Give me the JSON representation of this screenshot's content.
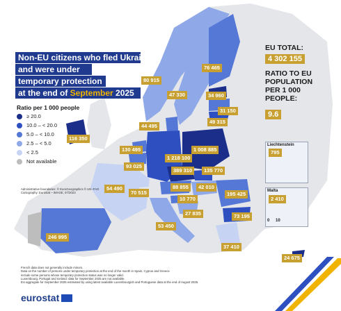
{
  "title": {
    "line1": "Non-EU citizens who fled Ukraine",
    "line2": "and were under",
    "line3": "temporary protection",
    "line4_prefix": "at the end of ",
    "line4_month": "September",
    "line4_year": " 2025"
  },
  "eu_total": {
    "label": "EU TOTAL:",
    "value": "4 302 155"
  },
  "ratio": {
    "label_lines": [
      "RATIO TO EU",
      "POPULATION",
      "PER 1 000",
      "PEOPLE:"
    ],
    "value": "9.6"
  },
  "legend": {
    "title": "Ratio per 1 000 people",
    "items": [
      {
        "label": "≥ 20.0",
        "color": "#1b2f8a"
      },
      {
        "label": "10.0 – < 20.0",
        "color": "#2e4fc0"
      },
      {
        "label": "5.0 – < 10.0",
        "color": "#5577d6"
      },
      {
        "label": "2.5 – < 5.0",
        "color": "#8ea8e8"
      },
      {
        "label": "< 2.5",
        "color": "#c6d3f3"
      },
      {
        "label": "Not available",
        "color": "#bdbdbd"
      }
    ]
  },
  "countries": [
    {
      "value": "116 350"
    },
    {
      "value": "80 915"
    },
    {
      "value": "47 330"
    },
    {
      "value": "76 465"
    },
    {
      "value": "34 960"
    },
    {
      "value": "31 150"
    },
    {
      "value": "49 315"
    },
    {
      "value": "44 495"
    },
    {
      "value": "130 495"
    },
    {
      "value": "93 025"
    },
    {
      "value": "1 218 100"
    },
    {
      "value": "1 008 885"
    },
    {
      "value": "389 310"
    },
    {
      "value": "135 770"
    },
    {
      "value": "88 855"
    },
    {
      "value": "42 010"
    },
    {
      "value": "54 490"
    },
    {
      "value": "70 515"
    },
    {
      "value": "10 770"
    },
    {
      "value": "195 425"
    },
    {
      "value": "27 835"
    },
    {
      "value": "73 195"
    },
    {
      "value": "53 450"
    },
    {
      "value": "246 995"
    },
    {
      "value": "37 410"
    },
    {
      "value": "24 675"
    }
  ],
  "insets": {
    "liechtenstein": {
      "title": "Liechtenstein",
      "value": "795"
    },
    "malta": {
      "title": "Malta",
      "value": "2 410"
    },
    "scale_labels": [
      "0",
      "10"
    ]
  },
  "admin_note": "Administrative boundaries: © EuroGeographics © UN–FAO Cartography: Eurostat – IMAGE, 07/2023",
  "footnotes": [
    "French data does not generally include minors.",
    "Data on the number of persons under temporary protection at the end of the month in Spain, Cyprus and Greece",
    "include some persons whose temporary protection status was no longer valid.",
    "Luxembourg, Portugal and Iceland: data for September 2025 are not available.",
    "EU aggregate for September 2025 estimated by using latest available Luxembourgish and Portuguese data at the end of August 2025."
  ],
  "brand": "eurostat",
  "colors": {
    "background_sea": "#ffffff",
    "title_bg": "#1f3a8f",
    "accent": "#f0b400",
    "label_bg": "#c8a032",
    "nonEU": "#e4e6ea"
  }
}
